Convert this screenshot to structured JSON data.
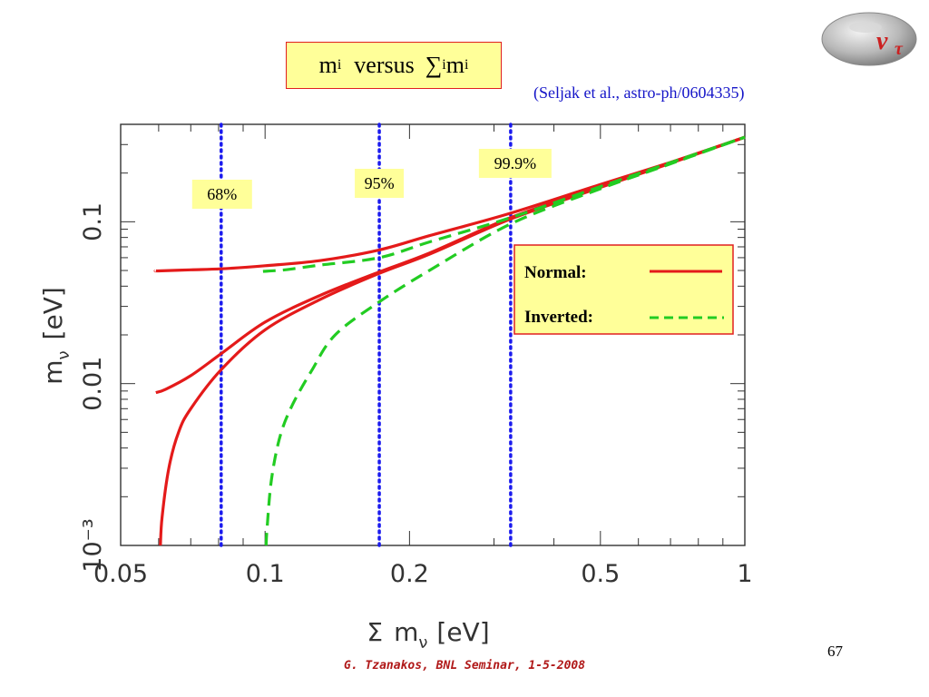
{
  "slide": {
    "title_main": "m",
    "title_sub_i": "i",
    "title_versus": "versus",
    "title_sum": "∑",
    "title_m": "m",
    "citation": "(Seljak et al., astro-ph/0604335)",
    "logo_label_nu": "ν",
    "logo_label_tau": "τ",
    "footer": "G. Tzanakos, BNL Seminar, 1-5-2008",
    "page_number": "67"
  },
  "colors": {
    "normal": "#e41a1a",
    "inverted": "#22cc22",
    "cl_lines": "#1a1aee",
    "label_fill": "#ffff99",
    "legend_border": "#e02020"
  },
  "chart_data": {
    "type": "line",
    "xlabel": "Σ m_ν [eV]",
    "ylabel": "m_ν [eV]",
    "xscale": "log",
    "yscale": "log",
    "xlim": [
      0.05,
      1
    ],
    "ylim": [
      0.001,
      0.4
    ],
    "x_ticks": [
      {
        "value": 0.05,
        "label": "0.05"
      },
      {
        "value": 0.1,
        "label": "0.1"
      },
      {
        "value": 0.2,
        "label": "0.2"
      },
      {
        "value": 0.5,
        "label": "0.5"
      },
      {
        "value": 1,
        "label": "1"
      }
    ],
    "y_ticks": [
      {
        "value": 0.001,
        "label": "10⁻³"
      },
      {
        "value": 0.01,
        "label": "0.01"
      },
      {
        "value": 0.1,
        "label": "0.1"
      }
    ],
    "confidence_limits": [
      {
        "label": "68%",
        "x": 0.081
      },
      {
        "label": "95%",
        "x": 0.173
      },
      {
        "label": "99.9%",
        "x": 0.325
      }
    ],
    "legend": [
      {
        "label": "Normal:",
        "style": "solid",
        "color_key": "normal"
      },
      {
        "label": "Inverted:",
        "style": "dashed",
        "color_key": "inverted"
      }
    ],
    "series": [
      {
        "legend_key": "normal",
        "part": "heaviest",
        "style": "solid",
        "points": [
          [
            0.0592,
            0.0498
          ],
          [
            0.06,
            0.0497
          ],
          [
            0.07,
            0.0505
          ],
          [
            0.081,
            0.0512
          ],
          [
            0.1,
            0.0535
          ],
          [
            0.13,
            0.0575
          ],
          [
            0.173,
            0.067
          ],
          [
            0.22,
            0.082
          ],
          [
            0.325,
            0.113
          ],
          [
            0.5,
            0.17
          ],
          [
            0.7,
            0.233
          ],
          [
            1,
            0.333
          ]
        ]
      },
      {
        "legend_key": "normal",
        "part": "middle",
        "style": "solid",
        "points": [
          [
            0.0592,
            0.0088
          ],
          [
            0.062,
            0.0092
          ],
          [
            0.07,
            0.0112
          ],
          [
            0.081,
            0.0153
          ],
          [
            0.1,
            0.024
          ],
          [
            0.13,
            0.035
          ],
          [
            0.173,
            0.049
          ],
          [
            0.22,
            0.064
          ],
          [
            0.325,
            0.106
          ],
          [
            0.5,
            0.165
          ],
          [
            0.7,
            0.232
          ],
          [
            1,
            0.333
          ]
        ]
      },
      {
        "legend_key": "normal",
        "part": "lightest",
        "style": "solid",
        "points": [
          [
            0.0605,
            0.001
          ],
          [
            0.061,
            0.0015
          ],
          [
            0.063,
            0.003
          ],
          [
            0.066,
            0.005
          ],
          [
            0.07,
            0.007
          ],
          [
            0.081,
            0.0122
          ],
          [
            0.1,
            0.0215
          ],
          [
            0.13,
            0.033
          ],
          [
            0.173,
            0.048
          ],
          [
            0.22,
            0.063
          ],
          [
            0.325,
            0.104
          ],
          [
            0.5,
            0.163
          ],
          [
            0.7,
            0.23
          ],
          [
            1,
            0.333
          ]
        ]
      },
      {
        "legend_key": "inverted",
        "part": "heavy pair",
        "style": "dashed",
        "points": [
          [
            0.099,
            0.0494
          ],
          [
            0.11,
            0.0505
          ],
          [
            0.13,
            0.054
          ],
          [
            0.173,
            0.06
          ],
          [
            0.22,
            0.075
          ],
          [
            0.325,
            0.106
          ],
          [
            0.5,
            0.165
          ],
          [
            0.7,
            0.232
          ],
          [
            1,
            0.333
          ]
        ]
      },
      {
        "legend_key": "inverted",
        "part": "lightest",
        "style": "dashed",
        "points": [
          [
            0.1005,
            0.001
          ],
          [
            0.101,
            0.0013
          ],
          [
            0.103,
            0.0025
          ],
          [
            0.107,
            0.0045
          ],
          [
            0.113,
            0.007
          ],
          [
            0.125,
            0.012
          ],
          [
            0.14,
            0.02
          ],
          [
            0.173,
            0.032
          ],
          [
            0.22,
            0.05
          ],
          [
            0.325,
            0.097
          ],
          [
            0.5,
            0.16
          ],
          [
            0.7,
            0.228
          ],
          [
            1,
            0.333
          ]
        ]
      }
    ]
  }
}
